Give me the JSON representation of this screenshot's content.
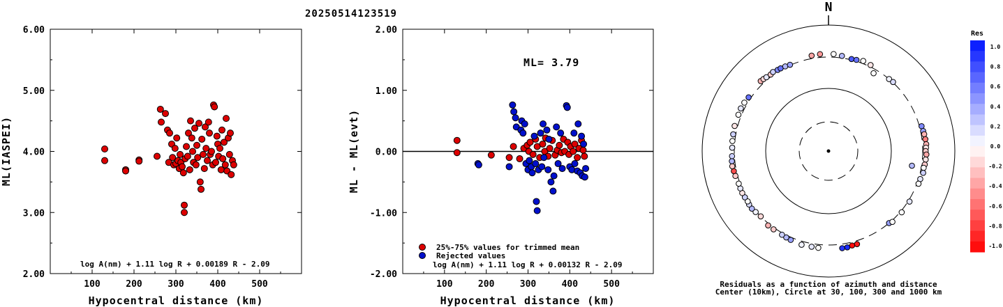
{
  "title": "20250514123519",
  "chart_data": [
    {
      "type": "scatter",
      "xlabel": "Hypocentral distance (km)",
      "ylabel": "ML(IASPEI)",
      "xlim": [
        0,
        600
      ],
      "ylim": [
        2.0,
        6.0
      ],
      "xticks": [
        "100",
        "200",
        "300",
        "400",
        "500"
      ],
      "yticks": [
        "2.00",
        "3.00",
        "4.00",
        "5.00",
        "6.00"
      ],
      "formula": "log A(nm) + 1.11 log R + 0.00189 R - 2.09",
      "point_color": "#dd0000",
      "series": [
        {
          "x": [
            130,
            130,
            180,
            180,
            212,
            212,
            255,
            263,
            265,
            275,
            280,
            283,
            285,
            290,
            292,
            295,
            298,
            300,
            302,
            305,
            308,
            310,
            312,
            315,
            318,
            320,
            320,
            322,
            325,
            328,
            330,
            333,
            335,
            338,
            340,
            342,
            345,
            348,
            350,
            352,
            355,
            358,
            360,
            362,
            365,
            368,
            370,
            372,
            375,
            378,
            380,
            382,
            385,
            388,
            390,
            392,
            395,
            398,
            400,
            402,
            405,
            408,
            410,
            412,
            415,
            418,
            420,
            422,
            425,
            428,
            430,
            432,
            435,
            438
          ],
          "y": [
            4.04,
            3.85,
            3.7,
            3.68,
            3.86,
            3.84,
            3.92,
            4.69,
            4.48,
            4.62,
            4.35,
            3.82,
            4.3,
            4.12,
            3.9,
            3.78,
            4.05,
            3.8,
            4.22,
            3.85,
            3.72,
            3.95,
            3.82,
            3.75,
            3.65,
            3.12,
            3.0,
            3.88,
            4.08,
            3.92,
            4.3,
            3.7,
            4.5,
            4.22,
            4.0,
            3.82,
            4.38,
            3.78,
            4.1,
            3.9,
            4.46,
            3.5,
            3.38,
            4.2,
            3.95,
            3.72,
            4.4,
            4.05,
            3.85,
            4.48,
            4.3,
            3.95,
            4.0,
            3.78,
            4.76,
            4.73,
            3.82,
            4.25,
            4.12,
            3.92,
            4.05,
            3.7,
            4.35,
            3.88,
            4.15,
            3.78,
            4.54,
            3.68,
            4.22,
            3.95,
            4.3,
            3.62,
            3.85,
            3.78
          ]
        }
      ]
    },
    {
      "type": "scatter",
      "xlabel": "Hypocentral distance (km)",
      "ylabel": "ML - ML(evt)",
      "xlim": [
        0,
        600
      ],
      "ylim": [
        -2.0,
        2.0
      ],
      "xticks": [
        "100",
        "200",
        "300",
        "400",
        "500"
      ],
      "yticks": [
        "-2.00",
        "-1.00",
        "0.00",
        "1.00",
        "2.00"
      ],
      "annotation": "ML= 3.79",
      "formula": "log A(nm) + 1.11 log R + 0.00132 R - 2.09",
      "series": [
        {
          "name": "25%-75% values for trimmed mean",
          "color": "#dd0000",
          "x": [
            130,
            130,
            212,
            255,
            265,
            280,
            290,
            298,
            302,
            305,
            312,
            318,
            322,
            328,
            335,
            340,
            342,
            348,
            352,
            358,
            365,
            370,
            375,
            380,
            385,
            388,
            395,
            398,
            402,
            408,
            412,
            418,
            422,
            428,
            432,
            435
          ],
          "y": [
            0.18,
            -0.02,
            -0.06,
            -0.1,
            0.08,
            -0.12,
            0.05,
            0.1,
            0.0,
            0.15,
            -0.05,
            0.2,
            0.08,
            -0.1,
            0.12,
            0.0,
            0.22,
            -0.08,
            0.05,
            0.18,
            -0.06,
            0.02,
            0.1,
            -0.02,
            0.2,
            0.0,
            0.15,
            -0.05,
            0.08,
            0.0,
            0.12,
            -0.1,
            0.05,
            0.18,
            0.02,
            -0.08
          ]
        },
        {
          "name": "Rejected values",
          "color": "#0010cc",
          "x": [
            180,
            182,
            255,
            263,
            266,
            270,
            272,
            283,
            285,
            288,
            292,
            295,
            300,
            303,
            308,
            310,
            315,
            318,
            320,
            322,
            325,
            330,
            333,
            336,
            338,
            345,
            348,
            350,
            355,
            360,
            362,
            368,
            372,
            378,
            382,
            392,
            394,
            400,
            405,
            410,
            412,
            418,
            420,
            425,
            428,
            430,
            433,
            436,
            438
          ],
          "y": [
            -0.2,
            -0.22,
            -0.25,
            0.76,
            0.65,
            0.55,
            0.4,
            0.35,
            0.5,
            0.3,
            0.45,
            -0.2,
            -0.3,
            -0.15,
            -0.25,
            -0.35,
            0.25,
            -0.2,
            -0.82,
            -0.97,
            -0.3,
            0.3,
            -0.25,
            0.45,
            -0.1,
            0.35,
            -0.3,
            0.2,
            -0.5,
            -0.65,
            -0.4,
            0.4,
            -0.2,
            0.3,
            -0.28,
            0.75,
            0.72,
            -0.25,
            -0.3,
            0.3,
            -0.2,
            -0.32,
            0.45,
            -0.35,
            0.25,
            -0.4,
            0.12,
            -0.42,
            -0.28
          ]
        }
      ]
    },
    {
      "type": "polar",
      "north_label": "N",
      "caption_line1": "Residuals as a function of azimuth and distance",
      "caption_line2": "Center (10km), Circle at 30, 100, 300 and 1000 km",
      "colorbar_title": "Res",
      "colorbar_ticks": [
        "1.0",
        "0.8",
        "0.6",
        "0.4",
        "0.2",
        "0.0",
        "-0.2",
        "-0.4",
        "-0.6",
        "-0.8",
        "-1.0"
      ],
      "colorbar_range": [
        -1.0,
        1.0
      ],
      "stations": [
        {
          "az": 350,
          "dist": 335,
          "res": -0.35
        },
        {
          "az": 355,
          "dist": 340,
          "res": -0.4
        },
        {
          "az": 3,
          "dist": 338,
          "res": 0.0
        },
        {
          "az": 8,
          "dist": 325,
          "res": 0.3
        },
        {
          "az": 14,
          "dist": 310,
          "res": 0.7
        },
        {
          "az": 17,
          "dist": 316,
          "res": 0.6
        },
        {
          "az": 21,
          "dist": 330,
          "res": 0.0
        },
        {
          "az": 26,
          "dist": 320,
          "res": -0.1
        },
        {
          "az": 30,
          "dist": 260,
          "res": 0.0
        },
        {
          "az": 40,
          "dist": 300,
          "res": 0.05
        },
        {
          "az": 43,
          "dist": 305,
          "res": 0.15
        },
        {
          "az": 75,
          "dist": 325,
          "res": 0.5
        },
        {
          "az": 78,
          "dist": 330,
          "res": 0.4
        },
        {
          "az": 80,
          "dist": 335,
          "res": -0.3
        },
        {
          "az": 83,
          "dist": 340,
          "res": -0.5
        },
        {
          "az": 86,
          "dist": 345,
          "res": -0.3
        },
        {
          "az": 88,
          "dist": 340,
          "res": -0.1
        },
        {
          "az": 90,
          "dist": 335,
          "res": -0.2
        },
        {
          "az": 92,
          "dist": 345,
          "res": -0.35
        },
        {
          "az": 95,
          "dist": 340,
          "res": -0.1
        },
        {
          "az": 98,
          "dist": 335,
          "res": -0.2
        },
        {
          "az": 100,
          "dist": 328,
          "res": 0.0
        },
        {
          "az": 103,
          "dist": 335,
          "res": 0.2
        },
        {
          "az": 107,
          "dist": 320,
          "res": 0.1
        },
        {
          "az": 110,
          "dist": 318,
          "res": 0.0
        },
        {
          "az": 100,
          "dist": 215,
          "res": 0.3
        },
        {
          "az": 122,
          "dist": 315,
          "res": 0.1
        },
        {
          "az": 130,
          "dist": 315,
          "res": 0.0
        },
        {
          "az": 140,
          "dist": 300,
          "res": 0.4
        },
        {
          "az": 138,
          "dist": 315,
          "res": 0.0
        },
        {
          "az": 163,
          "dist": 340,
          "res": -0.9
        },
        {
          "az": 166,
          "dist": 340,
          "res": -0.95
        },
        {
          "az": 169,
          "dist": 350,
          "res": 0.9
        },
        {
          "az": 172,
          "dist": 350,
          "res": 0.85
        },
        {
          "az": 186,
          "dist": 340,
          "res": 0.0
        },
        {
          "az": 190,
          "dist": 338,
          "res": 0.1
        },
        {
          "az": 196,
          "dist": 342,
          "res": 0.05
        },
        {
          "az": 203,
          "dist": 330,
          "res": 0.4
        },
        {
          "az": 206,
          "dist": 325,
          "res": 0.3
        },
        {
          "az": 209,
          "dist": 320,
          "res": 0.2
        },
        {
          "az": 215,
          "dist": 318,
          "res": -0.2
        },
        {
          "az": 219,
          "dist": 320,
          "res": -0.3
        },
        {
          "az": 226,
          "dist": 300,
          "res": -0.15
        },
        {
          "az": 230,
          "dist": 310,
          "res": 0.05
        },
        {
          "az": 233,
          "dist": 320,
          "res": 0.3
        },
        {
          "az": 236,
          "dist": 318,
          "res": 0.15
        },
        {
          "az": 238,
          "dist": 312,
          "res": 0.0
        },
        {
          "az": 241,
          "dist": 316,
          "res": 0.2
        },
        {
          "az": 244,
          "dist": 320,
          "res": -0.1
        },
        {
          "az": 247,
          "dist": 318,
          "res": 0.1
        },
        {
          "az": 250,
          "dist": 315,
          "res": 0.0
        },
        {
          "az": 255,
          "dist": 325,
          "res": -0.2
        },
        {
          "az": 258,
          "dist": 330,
          "res": -0.7
        },
        {
          "az": 261,
          "dist": 338,
          "res": -0.2
        },
        {
          "az": 264,
          "dist": 335,
          "res": 0.3
        },
        {
          "az": 267,
          "dist": 328,
          "res": 0.2
        },
        {
          "az": 272,
          "dist": 325,
          "res": 0.1
        },
        {
          "az": 276,
          "dist": 328,
          "res": 0.0
        },
        {
          "az": 280,
          "dist": 330,
          "res": 0.2
        },
        {
          "az": 285,
          "dist": 335,
          "res": -0.1
        },
        {
          "az": 292,
          "dist": 335,
          "res": 0.0
        },
        {
          "az": 296,
          "dist": 340,
          "res": 0.1
        },
        {
          "az": 300,
          "dist": 335,
          "res": 0.0
        },
        {
          "az": 304,
          "dist": 325,
          "res": 0.6
        },
        {
          "az": 316,
          "dist": 340,
          "res": -0.3
        },
        {
          "az": 318,
          "dist": 335,
          "res": -0.15
        },
        {
          "az": 320,
          "dist": 328,
          "res": 0.1
        },
        {
          "az": 323,
          "dist": 322,
          "res": -0.2
        },
        {
          "az": 325,
          "dist": 330,
          "res": 0.2
        },
        {
          "az": 328,
          "dist": 320,
          "res": 0.5
        },
        {
          "az": 330,
          "dist": 318,
          "res": 0.6
        },
        {
          "az": 333,
          "dist": 312,
          "res": 0.3
        },
        {
          "az": 336,
          "dist": 305,
          "res": 0.4
        }
      ]
    }
  ]
}
